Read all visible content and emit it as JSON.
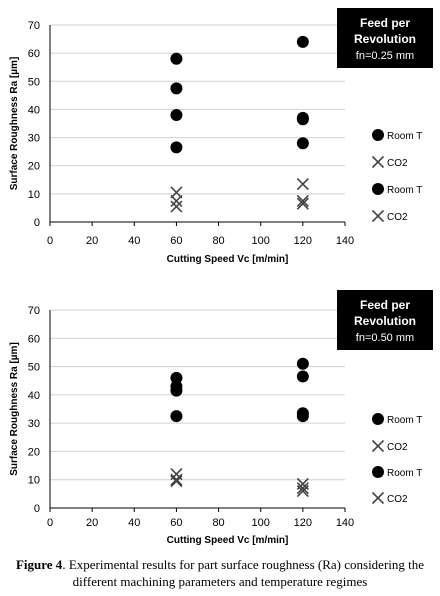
{
  "chart_data": [
    {
      "type": "scatter",
      "xlabel": "Cutting Speed Vc [m/min]",
      "ylabel": "Surface Roughness Ra [µm]",
      "xlim": [
        0,
        140
      ],
      "ylim": [
        0,
        70
      ],
      "xticks": [
        0,
        20,
        40,
        60,
        80,
        100,
        120,
        140
      ],
      "yticks": [
        0,
        10,
        20,
        30,
        40,
        50,
        60,
        70
      ],
      "grid": "horizontal",
      "legend_position": "right",
      "box": {
        "lines": [
          "Feed per",
          "Revolution"
        ],
        "value": "fn=0.25 mm"
      },
      "series": [
        {
          "name": "Room T",
          "marker": "circle",
          "x": [
            60,
            60,
            60,
            60,
            120,
            120,
            120,
            120
          ],
          "y": [
            58,
            47.5,
            38,
            26.5,
            64,
            37,
            36.5,
            28
          ]
        },
        {
          "name": "CO2",
          "marker": "x",
          "x": [
            60,
            60,
            60,
            120,
            120,
            120
          ],
          "y": [
            10.5,
            7.5,
            5.5,
            13.5,
            7.5,
            6.5
          ]
        },
        {
          "name": "Room T",
          "marker": "circle",
          "x": [],
          "y": []
        },
        {
          "name": "CO2",
          "marker": "x",
          "x": [],
          "y": []
        }
      ]
    },
    {
      "type": "scatter",
      "xlabel": "Cutting Speed Vc [m/min]",
      "ylabel": "Surface Roughness Ra [µm]",
      "xlim": [
        0,
        140
      ],
      "ylim": [
        0,
        70
      ],
      "xticks": [
        0,
        20,
        40,
        60,
        80,
        100,
        120,
        140
      ],
      "yticks": [
        0,
        10,
        20,
        30,
        40,
        50,
        60,
        70
      ],
      "grid": "horizontal",
      "legend_position": "right",
      "box": {
        "lines": [
          "Feed per",
          "Revolution"
        ],
        "value": "fn=0.50 mm"
      },
      "series": [
        {
          "name": "Room T",
          "marker": "circle",
          "x": [
            60,
            60,
            60,
            60,
            120,
            120,
            120,
            120
          ],
          "y": [
            46,
            43,
            41.5,
            32.5,
            51,
            46.5,
            33.5,
            32.5
          ]
        },
        {
          "name": "CO2",
          "marker": "x",
          "x": [
            60,
            60,
            60,
            120,
            120,
            120
          ],
          "y": [
            12,
            10,
            9.5,
            8.5,
            7,
            6
          ]
        },
        {
          "name": "Room T",
          "marker": "circle",
          "x": [],
          "y": []
        },
        {
          "name": "CO2",
          "marker": "x",
          "x": [],
          "y": []
        }
      ]
    }
  ],
  "caption": {
    "label": "Figure 4",
    "text": ". Experimental results for part surface roughness (Ra) considering the different machining parameters and temperature regimes"
  }
}
